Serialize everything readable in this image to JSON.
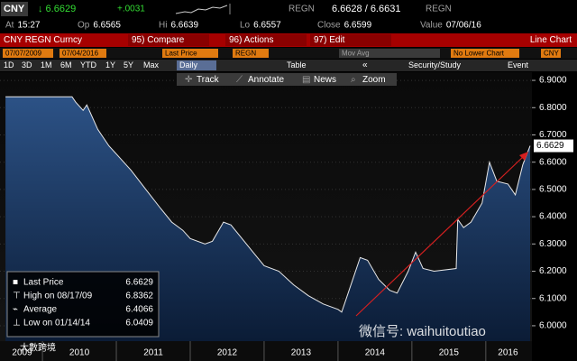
{
  "header": {
    "ticker": "CNY",
    "price": "↓ 6.6629",
    "change": "+.0031",
    "source": "REGN",
    "bid_ask": "6.6628 / 6.6631",
    "source2": "REGN"
  },
  "quote": [
    {
      "label": "At",
      "value": "15:27"
    },
    {
      "label": "Op",
      "value": "6.6565"
    },
    {
      "label": "Hi",
      "value": "6.6639"
    },
    {
      "label": "Lo",
      "value": "6.6557"
    },
    {
      "label": "Close",
      "value": "6.6599"
    },
    {
      "label": "Value",
      "value": "07/06/16"
    }
  ],
  "menu": [
    "CNY REGN Curncy",
    "95) Compare",
    "96) Actions",
    "97) Edit",
    "Line Chart"
  ],
  "fields": [
    "07/07/2009",
    "07/04/2016",
    "Last Price",
    "REGN",
    "Mov Avg",
    "No Lower Chart",
    "CNY"
  ],
  "periods": [
    "1D",
    "3D",
    "1M",
    "6M",
    "YTD",
    "1Y",
    "5Y",
    "Max",
    "Daily"
  ],
  "toolbar": [
    "Table",
    "Security/Study",
    "Event"
  ],
  "tools": [
    "Track",
    "Annotate",
    "News",
    "Zoom"
  ],
  "stats": [
    {
      "label": "Last Price",
      "value": "6.6629"
    },
    {
      "label": "High on 08/17/09",
      "value": "6.8362"
    },
    {
      "label": "Average",
      "value": "6.4066"
    },
    {
      "label": "Low on 01/14/14",
      "value": "6.0409"
    }
  ],
  "watermark": [
    "微信号: waihuitoutiao",
    "大數跨境"
  ],
  "chart_data": {
    "type": "area",
    "color": "#1f3d6b",
    "line_color": "#e8e8e8",
    "last_label": "6.6629",
    "x": [
      2009.5,
      2010.4,
      2010.45,
      2010.55,
      2010.6,
      2010.75,
      2010.9,
      2011.0,
      2011.2,
      2011.4,
      2011.6,
      2011.75,
      2011.9,
      2012.0,
      2012.2,
      2012.3,
      2012.45,
      2012.55,
      2012.7,
      2012.85,
      2013.0,
      2013.2,
      2013.4,
      2013.6,
      2013.8,
      2014.0,
      2014.05,
      2014.15,
      2014.3,
      2014.4,
      2014.55,
      2014.7,
      2014.8,
      2014.95,
      2015.05,
      2015.15,
      2015.3,
      2015.6,
      2015.62,
      2015.7,
      2015.8,
      2015.95,
      2016.05,
      2016.15,
      2016.3,
      2016.4,
      2016.5,
      2016.6
    ],
    "values": [
      6.84,
      6.84,
      6.82,
      6.79,
      6.81,
      6.72,
      6.66,
      6.63,
      6.57,
      6.5,
      6.43,
      6.38,
      6.35,
      6.32,
      6.3,
      6.31,
      6.38,
      6.37,
      6.32,
      6.27,
      6.22,
      6.2,
      6.15,
      6.11,
      6.08,
      6.06,
      6.05,
      6.13,
      6.25,
      6.24,
      6.17,
      6.13,
      6.12,
      6.2,
      6.27,
      6.21,
      6.2,
      6.21,
      6.39,
      6.36,
      6.38,
      6.45,
      6.6,
      6.53,
      6.52,
      6.48,
      6.59,
      6.66
    ],
    "xlim": [
      2009.45,
      2016.6
    ],
    "xticks": [
      2009,
      2010,
      2011,
      2012,
      2013,
      2014,
      2015,
      2016
    ],
    "ylim": [
      5.97,
      6.93
    ],
    "yticks": [
      {
        "value": 6,
        "label": "6.0000"
      },
      {
        "value": 6.1,
        "label": "6.1000"
      },
      {
        "value": 6.2,
        "label": "6.2000"
      },
      {
        "value": 6.3,
        "label": "6.3000"
      },
      {
        "value": 6.4,
        "label": "6.4000"
      },
      {
        "value": 6.5,
        "label": "6.5000"
      },
      {
        "value": 6.6,
        "label": "6.6000"
      },
      {
        "value": 6.7,
        "label": "6.7000"
      },
      {
        "value": 6.8,
        "label": "6.8000"
      },
      {
        "value": 6.9,
        "label": "6.9000"
      }
    ],
    "grid": true
  }
}
